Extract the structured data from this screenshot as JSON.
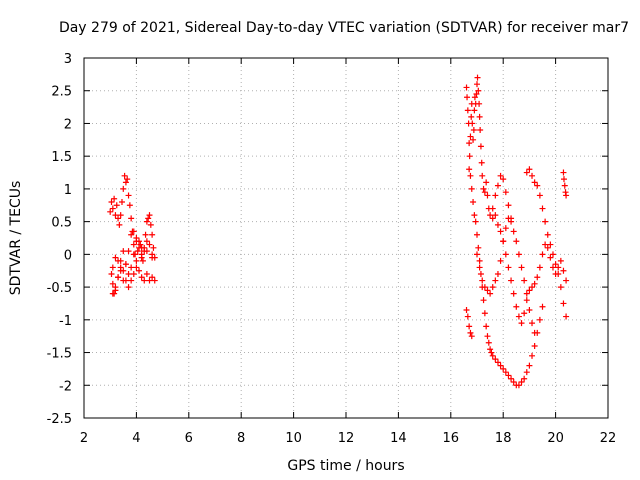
{
  "chart_data": {
    "type": "scatter",
    "title": "Day 279 of 2021, Sidereal Day-to-day VTEC variation (SDTVAR) for receiver mar7",
    "xlabel": "GPS time / hours",
    "ylabel": "SDTVAR / TECUs",
    "xlim": [
      2,
      22
    ],
    "ylim": [
      -2.5,
      3
    ],
    "xticks": [
      2,
      4,
      6,
      8,
      10,
      12,
      14,
      16,
      18,
      20,
      22
    ],
    "yticks": [
      -2.5,
      -2,
      -1.5,
      -1,
      -0.5,
      0,
      0.5,
      1,
      1.5,
      2,
      2.5,
      3
    ],
    "grid": true,
    "marker": "+",
    "series": [
      {
        "name": "SDTVAR",
        "color": "#ff0000",
        "x": [
          3.0,
          3.05,
          3.1,
          3.15,
          3.2,
          3.25,
          3.3,
          3.35,
          3.4,
          3.45,
          3.5,
          3.55,
          3.6,
          3.65,
          3.7,
          3.75,
          3.8,
          3.85,
          3.9,
          3.95,
          4.0,
          4.05,
          4.1,
          4.15,
          4.2,
          4.25,
          4.3,
          4.35,
          4.4,
          4.45,
          4.5,
          4.55,
          4.6,
          4.65,
          4.7,
          3.05,
          3.1,
          3.15,
          3.2,
          3.3,
          3.4,
          3.5,
          3.6,
          3.7,
          3.8,
          3.9,
          4.0,
          4.1,
          4.2,
          4.3,
          4.4,
          4.5,
          4.6,
          4.7,
          3.1,
          3.2,
          3.3,
          3.4,
          3.5,
          3.6,
          3.7,
          3.8,
          3.9,
          4.0,
          4.1,
          4.2,
          4.3,
          4.4,
          4.5,
          4.6,
          3.1,
          3.2,
          3.3,
          3.4,
          3.5,
          3.6,
          3.7,
          3.8,
          3.9,
          4.0,
          4.2,
          4.4,
          4.6,
          16.6,
          16.62,
          16.65,
          16.68,
          16.7,
          16.72,
          16.75,
          16.78,
          16.8,
          16.82,
          16.85,
          16.88,
          16.9,
          16.92,
          16.95,
          16.98,
          17.0,
          17.02,
          17.05,
          17.08,
          17.1,
          17.12,
          17.15,
          17.18,
          17.2,
          17.25,
          17.3,
          17.35,
          17.4,
          17.45,
          17.5,
          17.6,
          17.7,
          17.8,
          17.9,
          18.0,
          18.1,
          18.2,
          18.3,
          16.7,
          16.75,
          16.8,
          16.85,
          16.9,
          16.95,
          17.0,
          17.05,
          17.1,
          17.15,
          17.2,
          17.25,
          17.3,
          17.35,
          17.4,
          17.45,
          17.5,
          17.55,
          17.6,
          17.7,
          17.8,
          17.9,
          18.0,
          18.1,
          18.2,
          18.3,
          18.4,
          18.5,
          18.6,
          18.7,
          18.8,
          18.9,
          19.0,
          19.1,
          19.2,
          19.3,
          19.4,
          19.5,
          17.0,
          17.1,
          17.2,
          17.3,
          17.4,
          17.5,
          17.6,
          17.7,
          17.8,
          17.9,
          18.0,
          18.1,
          18.2,
          18.3,
          18.4,
          18.5,
          18.6,
          18.7,
          18.8,
          18.9,
          19.0,
          19.1,
          19.2,
          17.6,
          17.7,
          17.8,
          17.9,
          18.0,
          18.1,
          18.2,
          18.3,
          18.4,
          18.5,
          18.6,
          18.7,
          18.8,
          18.9,
          19.0,
          19.1,
          19.2,
          19.3,
          19.4,
          19.5,
          19.6,
          19.7,
          19.8,
          19.9,
          20.0,
          20.1,
          20.2,
          20.3,
          20.4,
          18.9,
          19.0,
          19.1,
          19.2,
          19.3,
          19.4,
          19.5,
          19.6,
          19.7,
          19.8,
          19.9,
          20.0,
          20.1,
          20.2,
          20.3,
          20.4,
          16.6,
          16.65,
          16.7,
          16.75,
          16.8,
          20.3,
          20.32,
          20.35,
          20.38,
          20.4
        ],
        "y": [
          0.65,
          0.8,
          0.7,
          0.85,
          0.6,
          0.75,
          0.55,
          0.45,
          0.6,
          0.8,
          1.0,
          1.2,
          1.1,
          1.15,
          0.9,
          0.75,
          0.55,
          0.35,
          0.15,
          0.0,
          -0.1,
          0.05,
          0.2,
          0.15,
          0.0,
          -0.1,
          0.1,
          0.3,
          0.5,
          0.55,
          0.6,
          0.45,
          0.3,
          0.1,
          -0.05,
          -0.3,
          -0.45,
          -0.6,
          -0.5,
          -0.35,
          -0.2,
          -0.25,
          -0.4,
          -0.5,
          -0.4,
          -0.3,
          -0.2,
          -0.25,
          -0.35,
          -0.4,
          -0.3,
          -0.4,
          -0.35,
          -0.4,
          -0.6,
          -0.55,
          -0.35,
          -0.1,
          0.05,
          -0.15,
          -0.3,
          -0.2,
          0.0,
          0.2,
          0.1,
          -0.05,
          0.05,
          0.2,
          0.15,
          0.0,
          -0.2,
          -0.05,
          -0.1,
          -0.25,
          -0.4,
          -0.15,
          0.05,
          0.3,
          0.35,
          0.25,
          0.1,
          0.05,
          -0.05,
          2.55,
          2.4,
          2.2,
          2.0,
          1.7,
          1.5,
          1.8,
          2.1,
          2.3,
          2.0,
          1.75,
          1.9,
          2.2,
          2.4,
          2.3,
          2.45,
          2.6,
          2.7,
          2.5,
          2.3,
          2.1,
          1.9,
          1.65,
          1.4,
          1.2,
          1.0,
          0.95,
          1.1,
          0.9,
          0.7,
          0.6,
          0.7,
          0.9,
          1.05,
          1.2,
          1.15,
          0.95,
          0.75,
          0.55,
          1.3,
          1.2,
          1.0,
          0.8,
          0.6,
          0.5,
          0.3,
          0.1,
          -0.1,
          -0.3,
          -0.5,
          -0.7,
          -0.9,
          -1.1,
          -1.25,
          -1.35,
          -1.45,
          -1.5,
          -1.55,
          -1.6,
          -1.65,
          -1.7,
          -1.75,
          -1.8,
          -1.85,
          -1.9,
          -1.95,
          -2.0,
          -2.0,
          -1.95,
          -1.9,
          -1.8,
          -1.7,
          -1.55,
          -1.4,
          -1.2,
          -1.0,
          -0.8,
          0.0,
          -0.2,
          -0.4,
          -0.5,
          -0.55,
          -0.6,
          -0.5,
          -0.4,
          -0.3,
          -0.1,
          0.2,
          0.4,
          0.55,
          0.5,
          0.35,
          0.2,
          0.0,
          -0.2,
          -0.4,
          -0.6,
          -0.85,
          -1.05,
          -1.2,
          0.55,
          0.6,
          0.45,
          0.35,
          0.2,
          0.0,
          -0.2,
          -0.4,
          -0.6,
          -0.8,
          -0.95,
          -1.05,
          -0.9,
          -0.7,
          -0.55,
          -0.5,
          -0.45,
          -0.35,
          -0.2,
          0.0,
          0.15,
          0.1,
          -0.05,
          -0.2,
          -0.3,
          -0.2,
          -0.1,
          -0.25,
          -0.4,
          1.25,
          1.3,
          1.2,
          1.1,
          1.05,
          0.9,
          0.7,
          0.5,
          0.3,
          0.15,
          0.0,
          -0.15,
          -0.3,
          -0.5,
          -0.75,
          -0.95,
          -0.85,
          -0.95,
          -1.1,
          -1.2,
          -1.25,
          1.25,
          1.15,
          1.05,
          0.95,
          0.9
        ]
      }
    ]
  }
}
